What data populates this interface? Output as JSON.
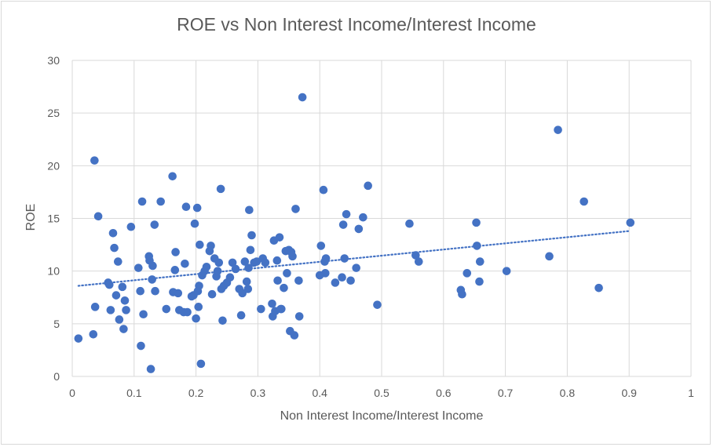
{
  "chart_data": {
    "type": "scatter",
    "title": "ROE vs Non Interest Income/Interest Income",
    "xlabel": "Non Interest Income/Interest Income",
    "ylabel": "ROE",
    "xlim": [
      0,
      1
    ],
    "ylim": [
      0,
      30
    ],
    "xticks": [
      "0",
      "0.1",
      "0.2",
      "0.3",
      "0.4",
      "0.5",
      "0.6",
      "0.7",
      "0.8",
      "0.9",
      "1"
    ],
    "yticks": [
      "0",
      "5",
      "10",
      "15",
      "20",
      "25",
      "30"
    ],
    "grid": true,
    "legend": "none",
    "marker_color": "#4472c4",
    "trendline": {
      "type": "linear",
      "x": [
        0.01,
        0.9
      ],
      "y": [
        8.6,
        13.8
      ],
      "style": "dotted"
    },
    "points": [
      [
        0.01,
        3.6
      ],
      [
        0.034,
        4.0
      ],
      [
        0.036,
        20.5
      ],
      [
        0.037,
        6.6
      ],
      [
        0.042,
        15.2
      ],
      [
        0.058,
        8.9
      ],
      [
        0.06,
        8.7
      ],
      [
        0.062,
        6.3
      ],
      [
        0.066,
        13.6
      ],
      [
        0.068,
        12.2
      ],
      [
        0.071,
        7.7
      ],
      [
        0.074,
        10.9
      ],
      [
        0.076,
        5.4
      ],
      [
        0.081,
        8.5
      ],
      [
        0.083,
        4.5
      ],
      [
        0.085,
        7.2
      ],
      [
        0.087,
        6.3
      ],
      [
        0.095,
        14.2
      ],
      [
        0.107,
        10.3
      ],
      [
        0.11,
        8.1
      ],
      [
        0.111,
        2.9
      ],
      [
        0.113,
        16.6
      ],
      [
        0.115,
        5.9
      ],
      [
        0.124,
        11.4
      ],
      [
        0.125,
        11.0
      ],
      [
        0.127,
        0.7
      ],
      [
        0.129,
        9.2
      ],
      [
        0.13,
        10.5
      ],
      [
        0.133,
        14.4
      ],
      [
        0.134,
        8.1
      ],
      [
        0.143,
        16.6
      ],
      [
        0.152,
        6.4
      ],
      [
        0.162,
        19.0
      ],
      [
        0.163,
        8.0
      ],
      [
        0.166,
        10.1
      ],
      [
        0.167,
        11.8
      ],
      [
        0.171,
        7.9
      ],
      [
        0.173,
        6.3
      ],
      [
        0.18,
        6.1
      ],
      [
        0.182,
        10.7
      ],
      [
        0.184,
        16.1
      ],
      [
        0.186,
        6.1
      ],
      [
        0.193,
        7.6
      ],
      [
        0.196,
        7.7
      ],
      [
        0.198,
        14.5
      ],
      [
        0.2,
        5.5
      ],
      [
        0.202,
        16.0
      ],
      [
        0.203,
        8.1
      ],
      [
        0.204,
        6.6
      ],
      [
        0.205,
        8.6
      ],
      [
        0.206,
        12.5
      ],
      [
        0.208,
        1.2
      ],
      [
        0.21,
        9.6
      ],
      [
        0.214,
        10.0
      ],
      [
        0.217,
        10.4
      ],
      [
        0.222,
        11.9
      ],
      [
        0.224,
        12.4
      ],
      [
        0.226,
        7.8
      ],
      [
        0.23,
        11.2
      ],
      [
        0.233,
        9.5
      ],
      [
        0.235,
        10.0
      ],
      [
        0.237,
        10.8
      ],
      [
        0.24,
        17.8
      ],
      [
        0.241,
        8.3
      ],
      [
        0.243,
        5.3
      ],
      [
        0.245,
        8.6
      ],
      [
        0.25,
        8.9
      ],
      [
        0.255,
        9.4
      ],
      [
        0.259,
        10.8
      ],
      [
        0.264,
        10.2
      ],
      [
        0.27,
        8.3
      ],
      [
        0.273,
        5.8
      ],
      [
        0.275,
        7.9
      ],
      [
        0.279,
        10.9
      ],
      [
        0.282,
        9.0
      ],
      [
        0.284,
        8.3
      ],
      [
        0.285,
        10.3
      ],
      [
        0.286,
        15.8
      ],
      [
        0.288,
        12.0
      ],
      [
        0.29,
        13.4
      ],
      [
        0.294,
        10.8
      ],
      [
        0.298,
        10.9
      ],
      [
        0.305,
        6.4
      ],
      [
        0.308,
        11.2
      ],
      [
        0.312,
        10.8
      ],
      [
        0.323,
        6.9
      ],
      [
        0.324,
        5.7
      ],
      [
        0.326,
        12.9
      ],
      [
        0.328,
        6.2
      ],
      [
        0.331,
        11.0
      ],
      [
        0.332,
        9.1
      ],
      [
        0.335,
        13.2
      ],
      [
        0.337,
        6.4
      ],
      [
        0.338,
        6.4
      ],
      [
        0.342,
        8.4
      ],
      [
        0.345,
        11.9
      ],
      [
        0.347,
        9.8
      ],
      [
        0.35,
        12.0
      ],
      [
        0.352,
        4.3
      ],
      [
        0.354,
        11.8
      ],
      [
        0.356,
        11.4
      ],
      [
        0.359,
        3.9
      ],
      [
        0.361,
        15.9
      ],
      [
        0.366,
        9.1
      ],
      [
        0.367,
        5.7
      ],
      [
        0.372,
        26.5
      ],
      [
        0.4,
        9.6
      ],
      [
        0.402,
        12.4
      ],
      [
        0.406,
        17.7
      ],
      [
        0.408,
        10.9
      ],
      [
        0.409,
        9.8
      ],
      [
        0.41,
        11.2
      ],
      [
        0.425,
        8.9
      ],
      [
        0.436,
        9.4
      ],
      [
        0.438,
        14.4
      ],
      [
        0.44,
        11.2
      ],
      [
        0.443,
        15.4
      ],
      [
        0.45,
        9.1
      ],
      [
        0.459,
        10.3
      ],
      [
        0.463,
        14.0
      ],
      [
        0.47,
        15.1
      ],
      [
        0.478,
        18.1
      ],
      [
        0.493,
        6.8
      ],
      [
        0.545,
        14.5
      ],
      [
        0.555,
        11.5
      ],
      [
        0.56,
        10.9
      ],
      [
        0.628,
        8.2
      ],
      [
        0.63,
        7.8
      ],
      [
        0.638,
        9.8
      ],
      [
        0.653,
        14.6
      ],
      [
        0.654,
        12.4
      ],
      [
        0.658,
        9.0
      ],
      [
        0.659,
        10.9
      ],
      [
        0.702,
        10.0
      ],
      [
        0.771,
        11.4
      ],
      [
        0.785,
        23.4
      ],
      [
        0.827,
        16.6
      ],
      [
        0.851,
        8.4
      ],
      [
        0.902,
        14.6
      ]
    ]
  }
}
